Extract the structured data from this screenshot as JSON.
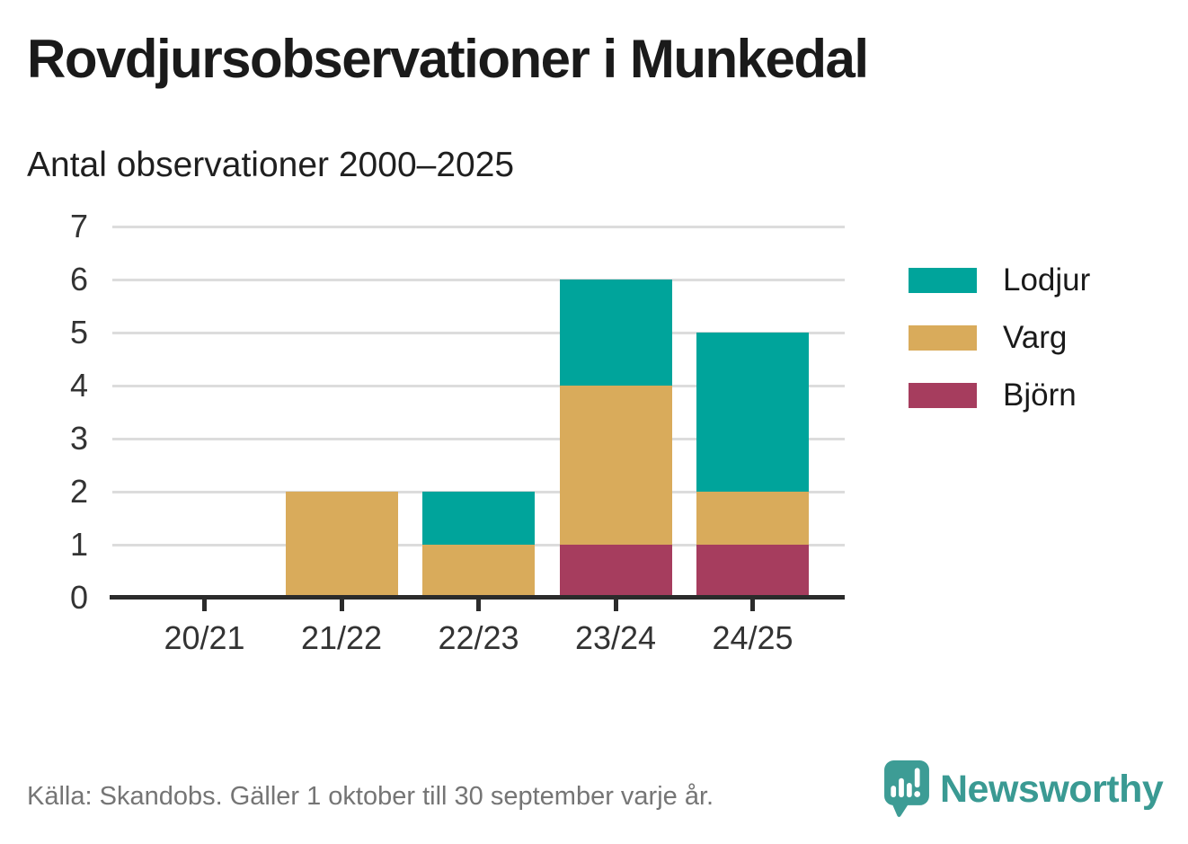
{
  "chart": {
    "title": "Rovdjursobservationer i Munkedal",
    "subtitle": "Antal observationer 2000–2025"
  },
  "chart_data": {
    "type": "bar",
    "stacked": true,
    "title": "Rovdjursobservationer i Munkedal",
    "subtitle": "Antal observationer 2000–2025",
    "categories": [
      "20/21",
      "21/22",
      "22/23",
      "23/24",
      "24/25"
    ],
    "series": [
      {
        "name": "Lodjur",
        "color": "#00a49b",
        "values": [
          0,
          0,
          1,
          2,
          3
        ]
      },
      {
        "name": "Varg",
        "color": "#d9ab5b",
        "values": [
          0,
          2,
          1,
          3,
          1
        ]
      },
      {
        "name": "Björn",
        "color": "#a63d5e",
        "values": [
          0,
          0,
          0,
          1,
          1
        ]
      }
    ],
    "totals": [
      0,
      2,
      2,
      6,
      5
    ],
    "xlabel": "",
    "ylabel": "",
    "ylim": [
      0,
      7
    ],
    "yticks": [
      0,
      1,
      2,
      3,
      4,
      5,
      6,
      7
    ],
    "grid": true,
    "legend_position": "right"
  },
  "footer": {
    "source": "Källa: Skandobs. Gäller 1 oktober till 30 september varje år.",
    "brand": "Newsworthy"
  },
  "colors": {
    "lodjur_teal": "#00a49b",
    "varg_gold": "#d9ab5b",
    "bjorn_maroon": "#a63d5e",
    "gridline": "#dcdcdc",
    "axis": "#2b2b2b",
    "text_dark": "#1a1a1a",
    "tick_text": "#333333",
    "source_text": "#757575",
    "logo_teal": "#3a9a93"
  }
}
